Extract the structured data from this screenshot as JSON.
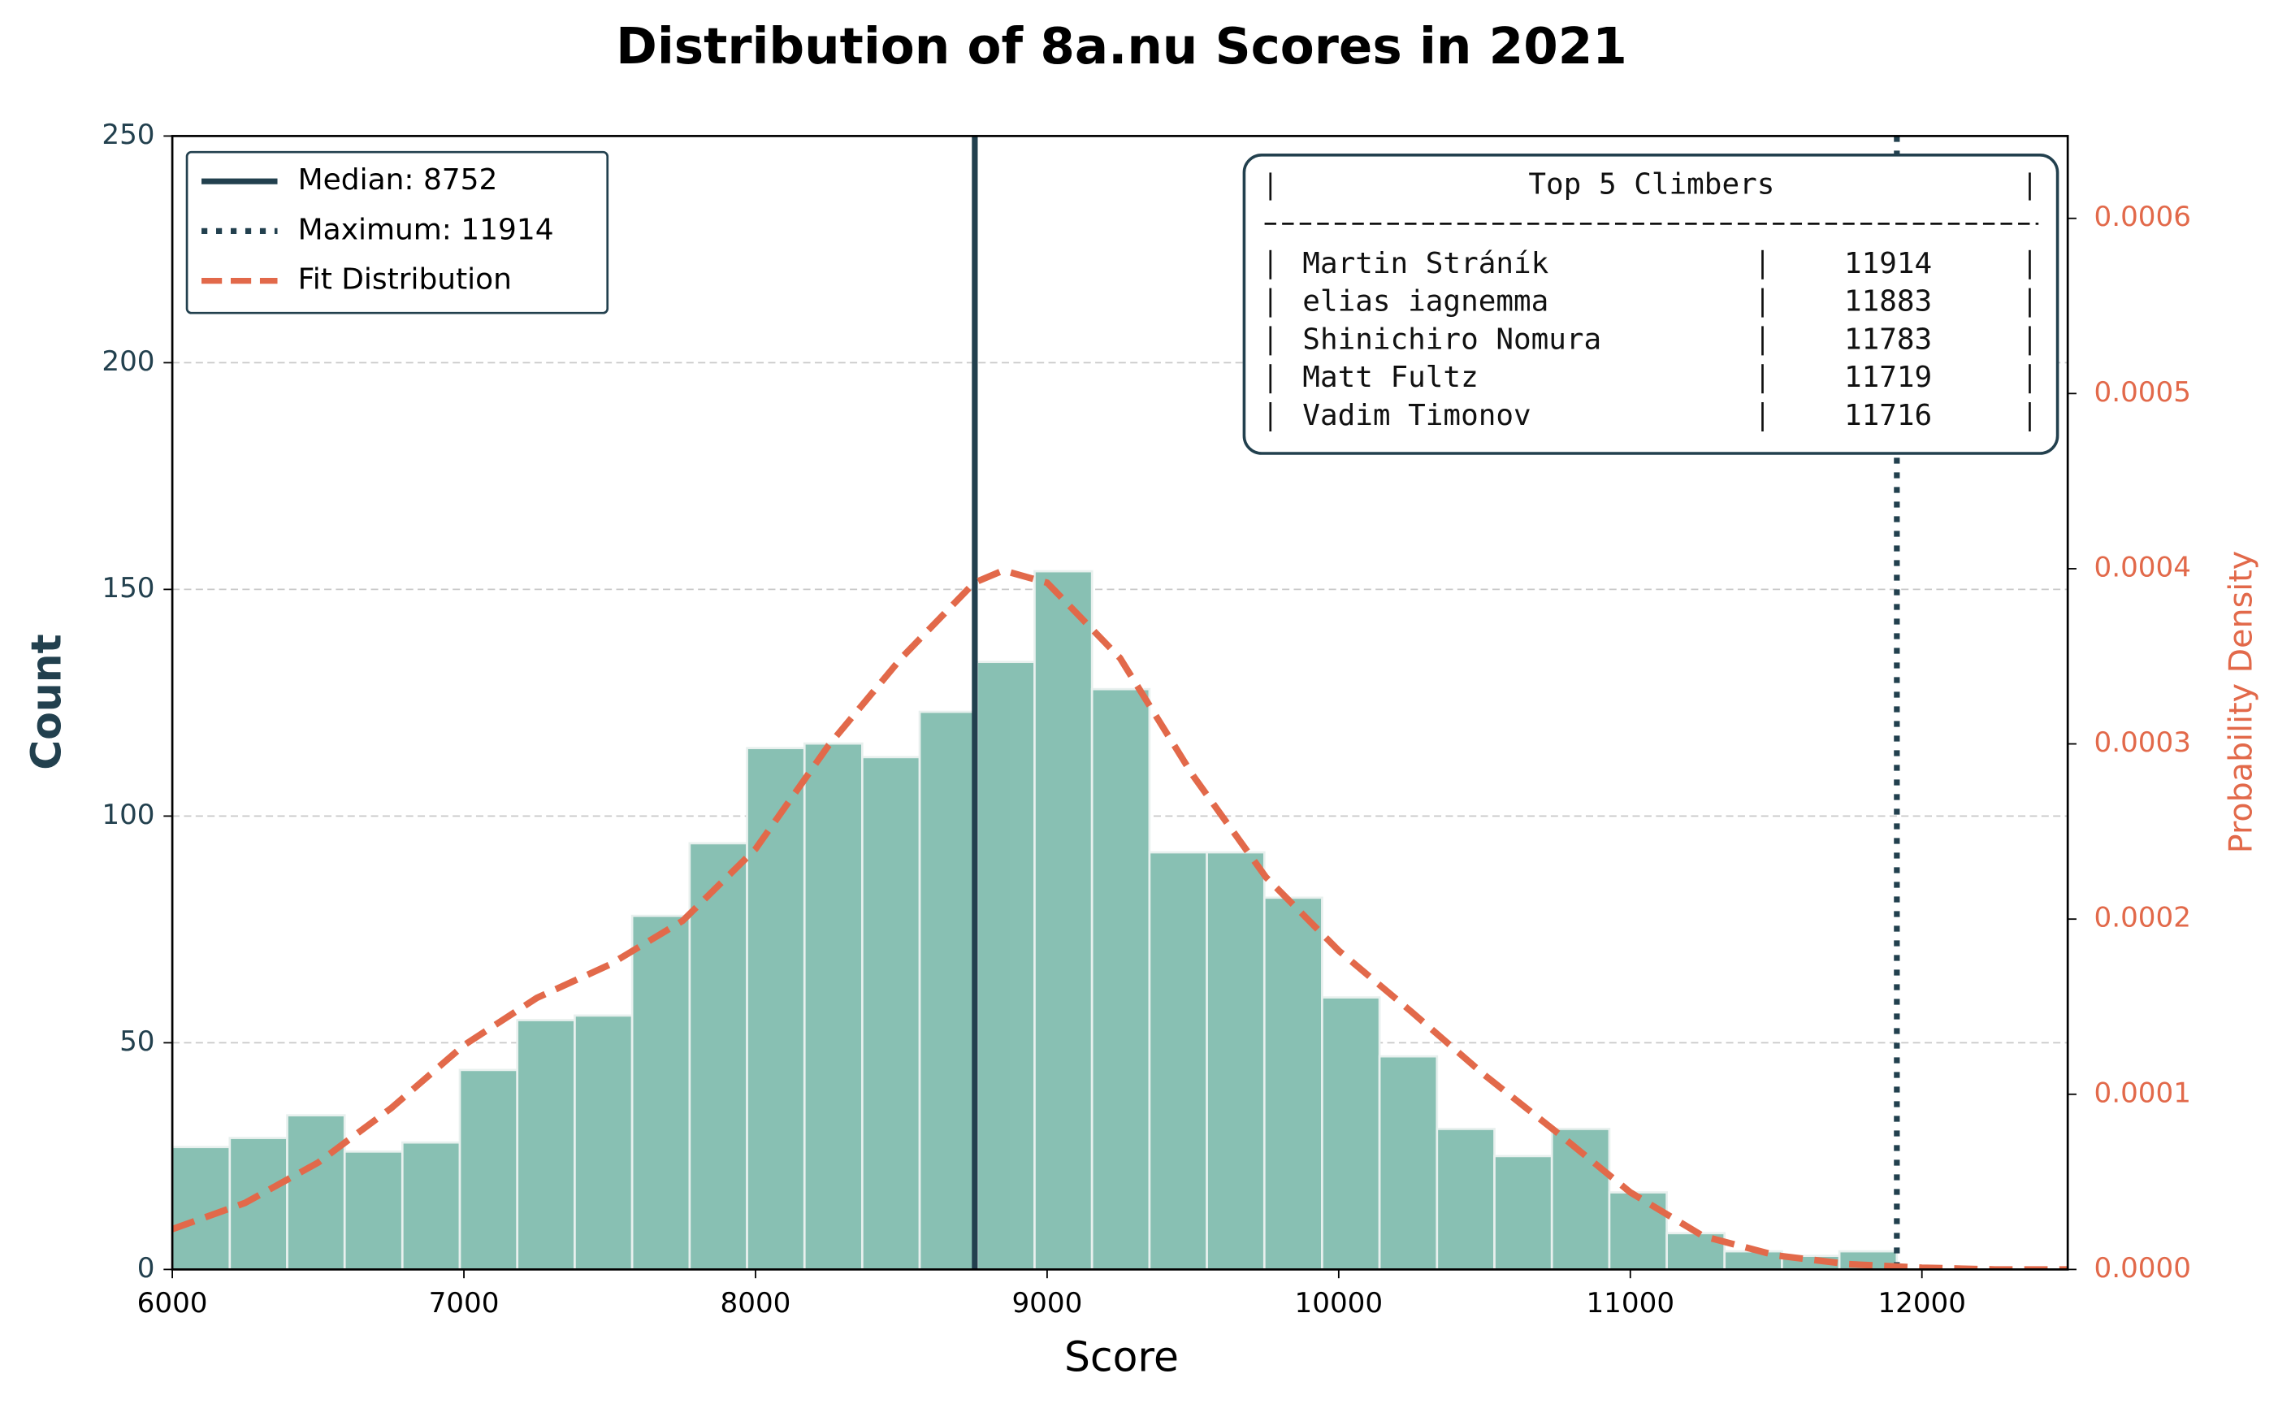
{
  "chart_data": {
    "type": "histogram",
    "title": "Distribution of 8a.nu Scores in 2021",
    "x_label": "Score",
    "y_label": "Count",
    "y2_label": "Probability Density",
    "bins": [
      6000,
      6197,
      6394,
      6591,
      6789,
      6986,
      7183,
      7380,
      7577,
      7774,
      7971,
      8168,
      8366,
      8563,
      8760,
      8957,
      9154,
      9351,
      9548,
      9745,
      9943,
      10140,
      10337,
      10534,
      10731,
      10928,
      11125,
      11323,
      11520,
      11717,
      11914
    ],
    "counts": [
      27,
      29,
      34,
      26,
      28,
      44,
      55,
      56,
      78,
      94,
      115,
      116,
      113,
      123,
      134,
      154,
      128,
      92,
      92,
      82,
      60,
      47,
      31,
      25,
      31,
      17,
      8,
      4,
      3,
      4
    ],
    "color": "#88c0b3",
    "xlim": [
      6000,
      12500
    ],
    "xticks": [
      6000,
      7000,
      8000,
      9000,
      10000,
      11000,
      12000
    ],
    "ylim": [
      0,
      250
    ],
    "yticks": [
      0,
      50,
      100,
      150,
      200,
      250
    ],
    "y2lim": [
      0,
      0.000647
    ],
    "y2ticks": [
      {
        "value": 0,
        "label": "0.0000"
      },
      {
        "value": 0.0001,
        "label": "0.0001"
      },
      {
        "value": 0.0002,
        "label": "0.0002"
      },
      {
        "value": 0.0003,
        "label": "0.0003"
      },
      {
        "value": 0.0004,
        "label": "0.0004"
      },
      {
        "value": 0.0005,
        "label": "0.0005"
      },
      {
        "value": 0.0006,
        "label": "0.0006"
      }
    ],
    "grid": true,
    "median": {
      "value": 8752,
      "label": "Median: 8752",
      "color": "#22404e"
    },
    "maximum": {
      "value": 11914,
      "label": "Maximum: 11914",
      "color": "#22404e"
    },
    "fit": {
      "name": "Fit Distribution",
      "color": "#e2694a",
      "axis": "y2",
      "x": [
        6000,
        6250,
        6500,
        6750,
        7000,
        7250,
        7500,
        7750,
        8000,
        8250,
        8500,
        8750,
        8850,
        9000,
        9250,
        9500,
        9750,
        10000,
        10250,
        10500,
        10750,
        11000,
        11250,
        11500,
        11750,
        12000,
        12250,
        12500
      ],
      "values": [
        2.3e-05,
        3.8e-05,
        6.1e-05,
        9.2e-05,
        0.000128,
        0.000155,
        0.000174,
        0.000199,
        0.00024,
        0.000299,
        0.000349,
        0.000392,
        0.000399,
        0.000392,
        0.000349,
        0.000282,
        0.000224,
        0.000182,
        0.000147,
        0.000111,
        7.8e-05,
        4.4e-05,
        1.9e-05,
        8e-06,
        3e-06,
        1e-06,
        0,
        0
      ]
    },
    "legend_position": "upper left",
    "table": {
      "title": "Top 5 Climbers",
      "rows": [
        [
          "Martin Stráník",
          11914
        ],
        [
          "elias iagnemma",
          11883
        ],
        [
          "Shinichiro Nomura",
          11783
        ],
        [
          "Matt Fultz",
          11719
        ],
        [
          "Vadim Timonov",
          11716
        ]
      ]
    }
  }
}
